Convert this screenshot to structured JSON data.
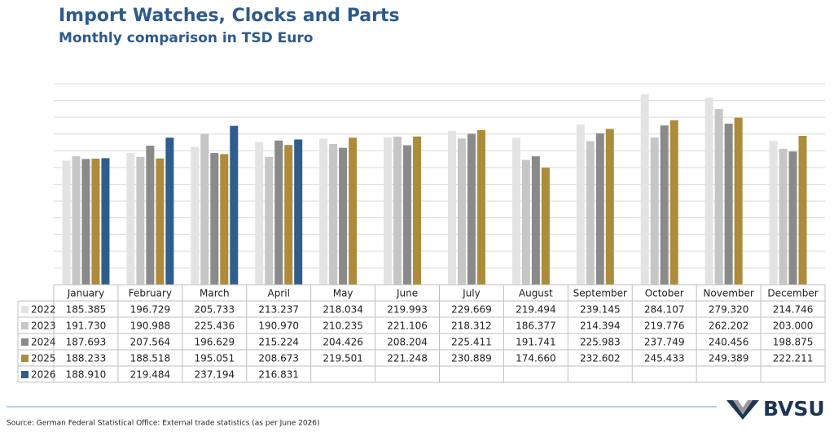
{
  "chart_data": {
    "type": "bar",
    "title": "Import Watches, Clocks and Parts",
    "subtitle": "Monthly comparison in TSD Euro",
    "source": "Source: German Federal Statistical Office: External trade statistics (as per June 2026)",
    "categories": [
      "January",
      "February",
      "March",
      "April",
      "May",
      "June",
      "July",
      "August",
      "September",
      "October",
      "November",
      "December"
    ],
    "ylim": [
      0,
      300000
    ],
    "yticks": [
      0,
      25000,
      50000,
      75000,
      100000,
      125000,
      150000,
      175000,
      200000,
      225000,
      250000,
      275000,
      300000
    ],
    "grid": true,
    "series": [
      {
        "name": "2022",
        "color": "#e3e3e3",
        "values": [
          185385,
          196729,
          205733,
          213237,
          218034,
          219993,
          229669,
          219494,
          239145,
          284107,
          279320,
          214746
        ],
        "value_labels": [
          "185.385",
          "196.729",
          "205.733",
          "213.237",
          "218.034",
          "219.993",
          "229.669",
          "219.494",
          "239.145",
          "284.107",
          "279.320",
          "214.746"
        ]
      },
      {
        "name": "2023",
        "color": "#c6c6c6",
        "values": [
          191730,
          190988,
          225436,
          190970,
          210235,
          221106,
          218312,
          186377,
          214394,
          219776,
          262202,
          203000
        ],
        "value_labels": [
          "191.730",
          "190.988",
          "225.436",
          "190.970",
          "210.235",
          "221.106",
          "218.312",
          "186.377",
          "214.394",
          "219.776",
          "262.202",
          "203.000"
        ]
      },
      {
        "name": "2024",
        "color": "#8a8a8a",
        "values": [
          187693,
          207564,
          196629,
          215224,
          204426,
          208204,
          225411,
          191741,
          225983,
          237749,
          240456,
          198875
        ],
        "value_labels": [
          "187.693",
          "207.564",
          "196.629",
          "215.224",
          "204.426",
          "208.204",
          "225.411",
          "191.741",
          "225.983",
          "237.749",
          "240.456",
          "198.875"
        ]
      },
      {
        "name": "2025",
        "color": "#ad8b3a",
        "values": [
          188233,
          188518,
          195051,
          208673,
          219501,
          221248,
          230889,
          174660,
          232602,
          245433,
          249389,
          222211
        ],
        "value_labels": [
          "188.233",
          "188.518",
          "195.051",
          "208.673",
          "219.501",
          "221.248",
          "230.889",
          "174.660",
          "232.602",
          "245.433",
          "249.389",
          "222.211"
        ]
      },
      {
        "name": "2026",
        "color": "#2f5d8c",
        "values": [
          188910,
          219484,
          237194,
          216831,
          null,
          null,
          null,
          null,
          null,
          null,
          null,
          null
        ],
        "value_labels": [
          "188.910",
          "219.484",
          "237.194",
          "216.831",
          null,
          null,
          null,
          null,
          null,
          null,
          null,
          null
        ]
      }
    ]
  },
  "logo": {
    "text": "BVSU"
  }
}
